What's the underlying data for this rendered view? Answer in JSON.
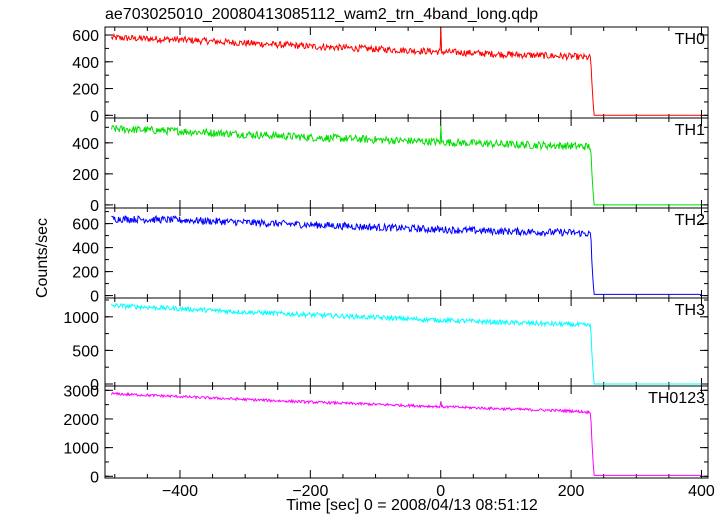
{
  "title": "ae703025010_20080413085112_wam2_trn_4band_long.qdp",
  "xlabel": "Time [sec] 0 = 2008/04/13 08:51:12",
  "ylabel": "Counts/sec",
  "chart_data": [
    {
      "type": "line",
      "series": [
        {
          "name": "TH0",
          "color": "#ff0000"
        }
      ],
      "xlim": [
        -515,
        410
      ],
      "ylim": [
        -20,
        660
      ],
      "yticks": [
        0,
        200,
        400,
        600
      ],
      "x": [
        -505,
        -400,
        -300,
        -200,
        -100,
        0,
        100,
        200,
        230,
        232,
        235,
        400
      ],
      "values": [
        580,
        565,
        540,
        515,
        495,
        475,
        455,
        440,
        430,
        240,
        0,
        0
      ],
      "noise": 25,
      "spike": {
        "x": 0,
        "value": 650
      }
    },
    {
      "type": "line",
      "series": [
        {
          "name": "TH1",
          "color": "#00e000"
        }
      ],
      "xlim": [
        -515,
        410
      ],
      "ylim": [
        -20,
        560
      ],
      "yticks": [
        0,
        200,
        400
      ],
      "x": [
        -505,
        -400,
        -300,
        -200,
        -100,
        0,
        100,
        200,
        230,
        232,
        235,
        400
      ],
      "values": [
        490,
        475,
        455,
        435,
        420,
        405,
        390,
        380,
        375,
        200,
        0,
        0
      ],
      "noise": 25,
      "spike": {
        "x": 0,
        "value": 510
      }
    },
    {
      "type": "line",
      "series": [
        {
          "name": "TH2",
          "color": "#0000ff"
        }
      ],
      "xlim": [
        -515,
        410
      ],
      "ylim": [
        -20,
        730
      ],
      "yticks": [
        0,
        200,
        400,
        600
      ],
      "x": [
        -505,
        -400,
        -300,
        -200,
        -100,
        0,
        100,
        200,
        230,
        232,
        235,
        400
      ],
      "values": [
        640,
        630,
        610,
        590,
        570,
        550,
        535,
        525,
        515,
        270,
        10,
        10
      ],
      "noise": 30,
      "spike": null
    },
    {
      "type": "line",
      "series": [
        {
          "name": "TH3",
          "color": "#00ffff"
        }
      ],
      "xlim": [
        -515,
        410
      ],
      "ylim": [
        -30,
        1280
      ],
      "yticks": [
        0,
        500,
        1000
      ],
      "x": [
        -505,
        -400,
        -300,
        -200,
        -100,
        0,
        100,
        200,
        230,
        232,
        235,
        400
      ],
      "values": [
        1170,
        1120,
        1070,
        1030,
        990,
        950,
        915,
        885,
        870,
        440,
        0,
        0
      ],
      "noise": 35,
      "spike": null
    },
    {
      "type": "line",
      "series": [
        {
          "name": "TH0123",
          "color": "#ff00ff"
        }
      ],
      "xlim": [
        -515,
        410
      ],
      "ylim": [
        -60,
        3150
      ],
      "yticks": [
        0,
        1000,
        2000,
        3000
      ],
      "x": [
        -505,
        -400,
        -300,
        -200,
        -100,
        0,
        100,
        200,
        230,
        232,
        235,
        400
      ],
      "values": [
        2880,
        2780,
        2680,
        2590,
        2510,
        2430,
        2350,
        2280,
        2230,
        1200,
        30,
        30
      ],
      "noise": 45,
      "spike": {
        "x": 0,
        "value": 2620
      }
    }
  ],
  "xticks": [
    -400,
    -200,
    0,
    200,
    400
  ]
}
